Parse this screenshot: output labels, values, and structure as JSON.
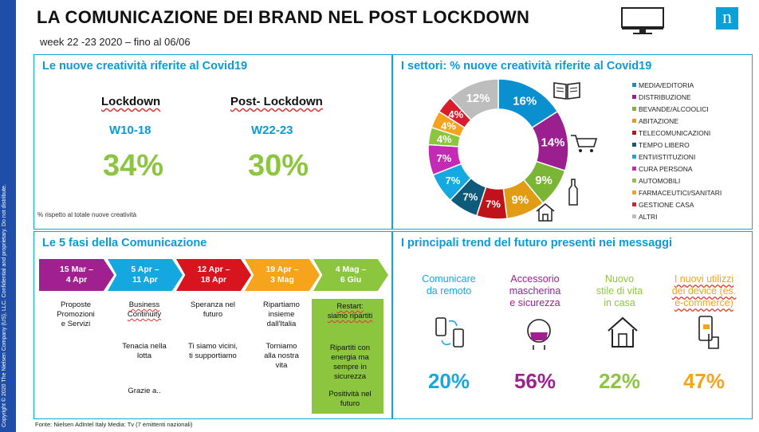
{
  "sidebar_text": "Copyright © 2020 The Nielsen Company (US), LLC. Confidential and proprietary. Do not distribute.",
  "title": "LA COMUNICAZIONE DEI BRAND NEL POST LOCKDOWN",
  "subtitle": "week 22 -23 2020 – fino al 06/06",
  "logo_letter": "n",
  "icons": {
    "monitor": "monitor-icon",
    "logo": "nielsen-logo",
    "book": "book-icon",
    "cart": "cart-icon",
    "bottle": "bottle-icon",
    "house": "house-icon",
    "phones": "phones-icon",
    "mask": "mask-face-icon",
    "home": "home-icon",
    "tap": "phone-tap-icon"
  },
  "panel1": {
    "title": "Le nuove creatività riferite al Covid19",
    "lockdown": {
      "label": "Lockdown",
      "week": "W10-18",
      "pct": "34%"
    },
    "post": {
      "label": "Post- Lockdown",
      "week": "W22-23",
      "pct": "30%"
    },
    "note": "% rispetto al totale nuove creatività"
  },
  "panel2": {
    "title": "I settori: % nuove creatività riferite al Covid19",
    "chart_data": {
      "type": "pie",
      "title": "I settori: % nuove creatività riferite al Covid19",
      "categories": [
        "MEDIA/EDITORIA",
        "DISTRIBUZIONE",
        "BEVANDE/ALCOOLICI",
        "ABITAZIONE",
        "TELECOMUNICAZIONI",
        "TEMPO LIBERO",
        "ENTI/ISTITUZIONI",
        "CURA PERSONA",
        "AUTOMOBILI",
        "FARMACEUTICI/SANITARI",
        "GESTIONE CASA",
        "ALTRI"
      ],
      "values": [
        16,
        14,
        9,
        9,
        7,
        7,
        7,
        7,
        4,
        4,
        4,
        12
      ],
      "labels": [
        "16%",
        "14%",
        "9%",
        "9%",
        "7%",
        "7%",
        "7%",
        "7%",
        "4%",
        "4%",
        "4%",
        "12%"
      ],
      "colors": [
        "#0a8fcf",
        "#9b1f8f",
        "#7ab536",
        "#e19b14",
        "#c1121c",
        "#0d5a7a",
        "#16a8e0",
        "#c42ab4",
        "#8cc63f",
        "#f5a31c",
        "#d81e2c",
        "#bdbdbd"
      ],
      "legend_position": "right"
    }
  },
  "panel3": {
    "title": "Le 5 fasi della Comunicazione",
    "phases": [
      {
        "date": "15 Mar –\n4 Apr",
        "color": "#a0208f",
        "texts": [
          "Proposte\nPromozioni\ne Servizi"
        ]
      },
      {
        "date": "5 Apr –\n11 Apr",
        "color": "#15a7e0",
        "texts": [
          "Business\nContinuity",
          "Tenacia nella\nlotta",
          "Grazie a.."
        ]
      },
      {
        "date": "12 Apr –\n18 Apr",
        "color": "#d8141e",
        "texts": [
          "Speranza nel\nfuturo",
          "Ti siamo vicini,\nti supportiamo"
        ]
      },
      {
        "date": "19 Apr –\n3 Mag",
        "color": "#f5a41c",
        "texts": [
          "Ripartiamo\ninsieme\ndall'Italia",
          "Torniamo\nalla nostra\nvita"
        ]
      },
      {
        "date": "4 Mag –\n6 Giu",
        "color": "#8cc63f",
        "texts": [
          "Restart:\nsiamo ripartiti",
          "Ripartiti con\nenergia ma\nsempre in\nsicurezza",
          "Positività nel\nfuturo"
        ]
      }
    ]
  },
  "panel4": {
    "title": "I principali trend del futuro presenti nei messaggi",
    "trends": [
      {
        "label": "Comunicare\nda remoto",
        "pct": "20%",
        "color": "#16a8e0"
      },
      {
        "label": "Accessorio\nmascherina\ne sicurezza",
        "pct": "56%",
        "color": "#a0208f"
      },
      {
        "label": "Nuovo\nstile di vita\nin casa",
        "pct": "22%",
        "color": "#8cc63f"
      },
      {
        "label": "I nuovi utilizzi\ndei device (es.\ne-commerce)",
        "pct": "47%",
        "color": "#f5a41c"
      }
    ]
  },
  "footer": "Fonte: Nielsen AdIntel Italy     Media: Tv (7 emittenti nazionali)"
}
